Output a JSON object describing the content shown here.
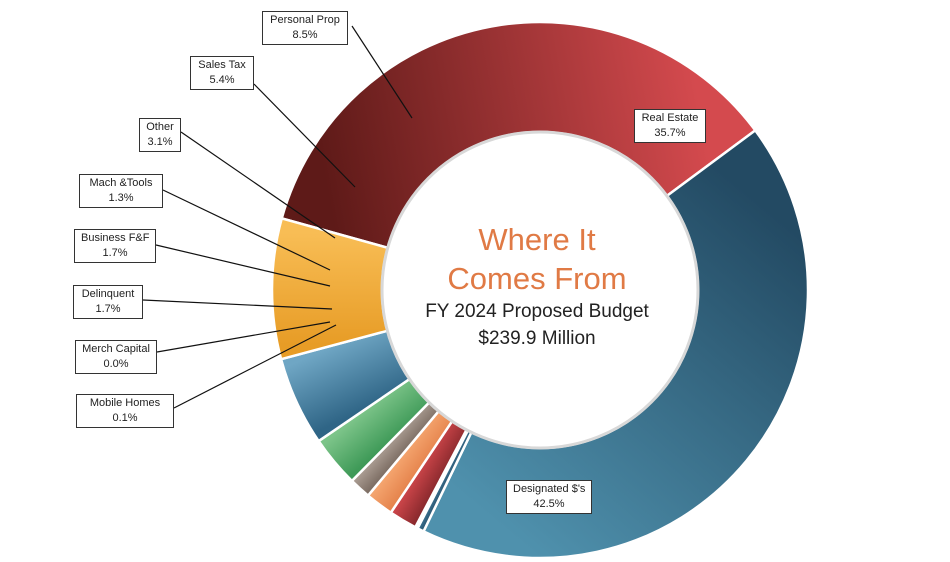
{
  "chart_data": {
    "type": "pie",
    "center_text": {
      "title_line1": "Where It",
      "title_line2": "Comes From",
      "subtitle_line1": "FY 2024 Proposed Budget",
      "subtitle_line2": "$239.9 Million"
    },
    "slices": [
      {
        "label": "Real Estate",
        "value_text": "35.7%",
        "value": 35.7,
        "color_light": "#d44a4e",
        "color_dark": "#5e1a18"
      },
      {
        "label": "Designated $'s",
        "value_text": "42.5%",
        "value": 42.5,
        "color_light": "#4f91ad",
        "color_dark": "#234a63"
      },
      {
        "label": "Mobile Homes",
        "value_text": "0.1%",
        "value": 0.1,
        "color_light": "#3a7090",
        "color_dark": "#2a5570"
      },
      {
        "label": "Merch Capital",
        "value_text": "0.0%",
        "value": 0.0,
        "color_light": "#b33b40",
        "color_dark": "#a8353a"
      },
      {
        "label": "Delinquent",
        "value_text": "1.7%",
        "value": 1.7,
        "color_light": "#c94448",
        "color_dark": "#8c2a2e"
      },
      {
        "label": "Business F&F",
        "value_text": "1.7%",
        "value": 1.7,
        "color_light": "#f4a46e",
        "color_dark": "#e6854e"
      },
      {
        "label": "Mach &Tools",
        "value_text": "1.3%",
        "value": 1.3,
        "color_light": "#a89a90",
        "color_dark": "#7d6e64"
      },
      {
        "label": "Other",
        "value_text": "3.1%",
        "value": 3.1,
        "color_light": "#7cc489",
        "color_dark": "#3f9a58"
      },
      {
        "label": "Sales Tax",
        "value_text": "5.4%",
        "value": 5.4,
        "color_light": "#6fa6c4",
        "color_dark": "#2f6586"
      },
      {
        "label": "Personal Prop",
        "value_text": "8.5%",
        "value": 8.5,
        "color_light": "#f8bd55",
        "color_dark": "#e79c26"
      }
    ]
  }
}
